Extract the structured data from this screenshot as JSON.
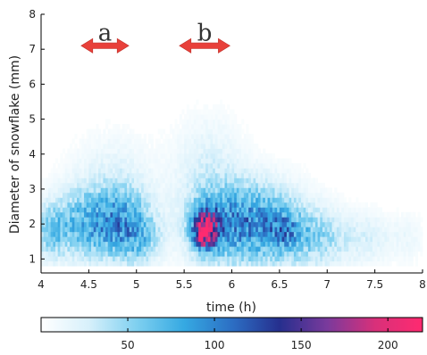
{
  "chart_data": {
    "type": "heatmap",
    "xlabel": "time (h)",
    "ylabel": "Diameter of snowflake (mm)",
    "xlim": [
      4,
      8
    ],
    "ylim": [
      0.6,
      8
    ],
    "x_ticks": [
      "4",
      "4.5",
      "5",
      "5.5",
      "6",
      "6.5",
      "7",
      "7.5",
      "8"
    ],
    "x_tick_values": [
      4,
      4.5,
      5,
      5.5,
      6,
      6.5,
      7,
      7.5,
      8
    ],
    "y_ticks": [
      "1",
      "2",
      "3",
      "4",
      "5",
      "6",
      "7",
      "8"
    ],
    "y_tick_values": [
      1,
      2,
      3,
      4,
      5,
      6,
      7,
      8
    ],
    "colorbar": {
      "range": [
        0,
        220
      ],
      "ticks": [
        "50",
        "100",
        "150",
        "200"
      ],
      "tick_values": [
        50,
        100,
        150,
        200
      ],
      "colors": [
        "#ffffff",
        "#d7f0fb",
        "#7fd0f0",
        "#35a9e2",
        "#2c6fc4",
        "#262f8e",
        "#7a3a9c",
        "#d8307a",
        "#ff2a70"
      ]
    },
    "grid": false,
    "density_clusters": [
      {
        "t": 4.1,
        "d": 1.8,
        "st": 0.12,
        "sd": 0.55,
        "peak": 45
      },
      {
        "t": 4.5,
        "d": 2.0,
        "st": 0.25,
        "sd": 0.7,
        "peak": 70
      },
      {
        "t": 4.9,
        "d": 2.0,
        "st": 0.2,
        "sd": 0.7,
        "peak": 60
      },
      {
        "t": 4.75,
        "d": 3.3,
        "st": 0.3,
        "sd": 0.9,
        "peak": 18
      },
      {
        "t": 5.05,
        "d": 1.5,
        "st": 0.15,
        "sd": 0.5,
        "peak": 30
      },
      {
        "t": 5.72,
        "d": 1.85,
        "st": 0.1,
        "sd": 0.45,
        "peak": 130
      },
      {
        "t": 5.72,
        "d": 1.8,
        "st": 0.05,
        "sd": 0.22,
        "peak": 110
      },
      {
        "t": 5.95,
        "d": 2.0,
        "st": 0.3,
        "sd": 0.8,
        "peak": 60
      },
      {
        "t": 5.75,
        "d": 3.6,
        "st": 0.25,
        "sd": 1.0,
        "peak": 22
      },
      {
        "t": 6.35,
        "d": 2.0,
        "st": 0.3,
        "sd": 0.8,
        "peak": 62
      },
      {
        "t": 6.55,
        "d": 1.8,
        "st": 0.12,
        "sd": 0.4,
        "peak": 35
      },
      {
        "t": 6.9,
        "d": 1.6,
        "st": 0.25,
        "sd": 0.6,
        "peak": 42
      },
      {
        "t": 7.45,
        "d": 1.6,
        "st": 0.18,
        "sd": 0.5,
        "peak": 20
      },
      {
        "t": 7.85,
        "d": 1.6,
        "st": 0.12,
        "sd": 0.5,
        "peak": 12
      }
    ],
    "annotations": [
      {
        "label": "a",
        "x_start": 4.42,
        "x_end": 4.92,
        "y": 7.1
      },
      {
        "label": "b",
        "x_start": 5.45,
        "x_end": 5.98,
        "y": 7.1
      }
    ],
    "arrow_color": "#e8403a"
  }
}
